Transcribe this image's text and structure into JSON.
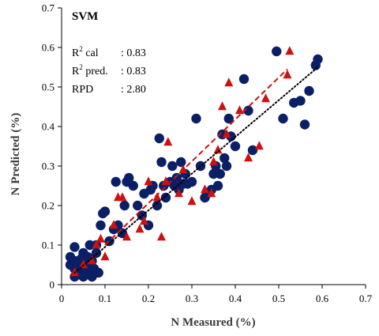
{
  "chart_data": {
    "type": "scatter",
    "title": "SVM",
    "xlabel": "N Measured (%)",
    "ylabel": "N Predicted (%)",
    "xlim": [
      0,
      0.7
    ],
    "ylim": [
      0,
      0.7
    ],
    "xticks": [
      "0",
      "0.1",
      "0.2",
      "0.3",
      "0.4",
      "0.5",
      "0.6",
      "0.7"
    ],
    "yticks": [
      "0",
      "0.1",
      "0.2",
      "0.3",
      "0.4",
      "0.5",
      "0.6",
      "0.7"
    ],
    "grid": false,
    "stats": [
      {
        "name": "R",
        "sup": "2",
        "rest": " cal",
        "value": ": 0.83"
      },
      {
        "name": "R",
        "sup": "2",
        "rest": " pred.",
        "value": ": 0.83"
      },
      {
        "name": "RPD",
        "sup": "",
        "rest": "",
        "value": ": 2.80"
      }
    ],
    "colors": {
      "calibration": "#0b1f66",
      "prediction": "#cc1111",
      "identity": "#000000"
    },
    "series": [
      {
        "marker": "circle",
        "color": "#0b1f66",
        "points": [
          [
            0.02,
            0.05
          ],
          [
            0.02,
            0.07
          ],
          [
            0.03,
            0.02
          ],
          [
            0.03,
            0.04
          ],
          [
            0.03,
            0.06
          ],
          [
            0.03,
            0.095
          ],
          [
            0.04,
            0.03
          ],
          [
            0.04,
            0.05
          ],
          [
            0.045,
            0.065
          ],
          [
            0.05,
            0.02
          ],
          [
            0.05,
            0.04
          ],
          [
            0.05,
            0.08
          ],
          [
            0.06,
            0.03
          ],
          [
            0.06,
            0.05
          ],
          [
            0.06,
            0.07
          ],
          [
            0.065,
            0.1
          ],
          [
            0.07,
            0.02
          ],
          [
            0.07,
            0.06
          ],
          [
            0.075,
            0.04
          ],
          [
            0.08,
            0.08
          ],
          [
            0.08,
            0.1
          ],
          [
            0.085,
            0.03
          ],
          [
            0.09,
            0.15
          ],
          [
            0.095,
            0.18
          ],
          [
            0.1,
            0.185
          ],
          [
            0.11,
            0.11
          ],
          [
            0.12,
            0.14
          ],
          [
            0.125,
            0.26
          ],
          [
            0.13,
            0.15
          ],
          [
            0.14,
            0.13
          ],
          [
            0.145,
            0.2
          ],
          [
            0.15,
            0.26
          ],
          [
            0.155,
            0.27
          ],
          [
            0.165,
            0.25
          ],
          [
            0.175,
            0.2
          ],
          [
            0.185,
            0.175
          ],
          [
            0.19,
            0.23
          ],
          [
            0.2,
            0.15
          ],
          [
            0.205,
            0.24
          ],
          [
            0.21,
            0.25
          ],
          [
            0.22,
            0.2
          ],
          [
            0.225,
            0.37
          ],
          [
            0.23,
            0.31
          ],
          [
            0.235,
            0.25
          ],
          [
            0.24,
            0.22
          ],
          [
            0.25,
            0.26
          ],
          [
            0.255,
            0.3
          ],
          [
            0.26,
            0.25
          ],
          [
            0.265,
            0.27
          ],
          [
            0.27,
            0.24
          ],
          [
            0.275,
            0.31
          ],
          [
            0.28,
            0.255
          ],
          [
            0.285,
            0.28
          ],
          [
            0.29,
            0.255
          ],
          [
            0.3,
            0.26
          ],
          [
            0.31,
            0.42
          ],
          [
            0.32,
            0.3
          ],
          [
            0.33,
            0.22
          ],
          [
            0.335,
            0.23
          ],
          [
            0.345,
            0.24
          ],
          [
            0.35,
            0.28
          ],
          [
            0.355,
            0.3
          ],
          [
            0.36,
            0.25
          ],
          [
            0.365,
            0.28
          ],
          [
            0.37,
            0.38
          ],
          [
            0.375,
            0.32
          ],
          [
            0.38,
            0.3
          ],
          [
            0.385,
            0.42
          ],
          [
            0.39,
            0.375
          ],
          [
            0.4,
            0.35
          ],
          [
            0.42,
            0.52
          ],
          [
            0.43,
            0.44
          ],
          [
            0.44,
            0.34
          ],
          [
            0.495,
            0.59
          ],
          [
            0.51,
            0.42
          ],
          [
            0.535,
            0.46
          ],
          [
            0.55,
            0.465
          ],
          [
            0.56,
            0.405
          ],
          [
            0.57,
            0.49
          ],
          [
            0.585,
            0.555
          ],
          [
            0.59,
            0.57
          ]
        ]
      },
      {
        "marker": "triangle",
        "color": "#cc1111",
        "points": [
          [
            0.03,
            0.03
          ],
          [
            0.05,
            0.05
          ],
          [
            0.07,
            0.06
          ],
          [
            0.08,
            0.1
          ],
          [
            0.09,
            0.115
          ],
          [
            0.1,
            0.07
          ],
          [
            0.12,
            0.15
          ],
          [
            0.13,
            0.22
          ],
          [
            0.14,
            0.22
          ],
          [
            0.15,
            0.12
          ],
          [
            0.18,
            0.14
          ],
          [
            0.19,
            0.16
          ],
          [
            0.2,
            0.26
          ],
          [
            0.22,
            0.22
          ],
          [
            0.23,
            0.12
          ],
          [
            0.24,
            0.26
          ],
          [
            0.245,
            0.36
          ],
          [
            0.27,
            0.23
          ],
          [
            0.28,
            0.29
          ],
          [
            0.3,
            0.21
          ],
          [
            0.33,
            0.24
          ],
          [
            0.345,
            0.23
          ],
          [
            0.35,
            0.31
          ],
          [
            0.36,
            0.34
          ],
          [
            0.37,
            0.45
          ],
          [
            0.38,
            0.38
          ],
          [
            0.385,
            0.51
          ],
          [
            0.41,
            0.44
          ],
          [
            0.43,
            0.32
          ],
          [
            0.455,
            0.35
          ],
          [
            0.47,
            0.47
          ],
          [
            0.52,
            0.53
          ],
          [
            0.525,
            0.59
          ]
        ]
      },
      {
        "type": "trendline",
        "style": "dashed",
        "color": "#cc1111",
        "x": [
          0.1,
          0.52
        ],
        "y": [
          0.1,
          0.545
        ]
      },
      {
        "type": "trendline",
        "style": "dotted",
        "color": "#000000",
        "x": [
          0.03,
          0.59
        ],
        "y": [
          0.03,
          0.55
        ]
      }
    ]
  }
}
